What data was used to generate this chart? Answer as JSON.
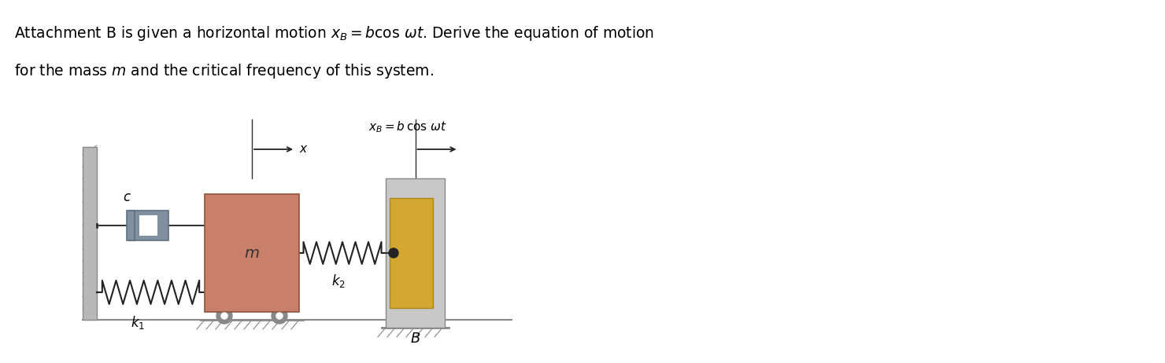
{
  "title_line1": "Attachment B is given a horizontal motion ",
  "title_math1": "x_B = bcos ωt",
  "title_line2": ". Derive the equation of motion",
  "title_line3": "for the mass ",
  "title_math2": "m",
  "title_line4": " and the critical frequency of this system.",
  "bg_color": "#ffffff",
  "wall_color": "#b0b0b0",
  "wall_color2": "#d0d0d0",
  "mass_color": "#c8806a",
  "damper_color": "#7090a0",
  "spring_color": "#333333",
  "ground_color": "#c8c8c8",
  "B_block_color": "#d4a830",
  "B_outer_color": "#c8c8c8",
  "fig_width": 14.8,
  "fig_height": 4.62
}
